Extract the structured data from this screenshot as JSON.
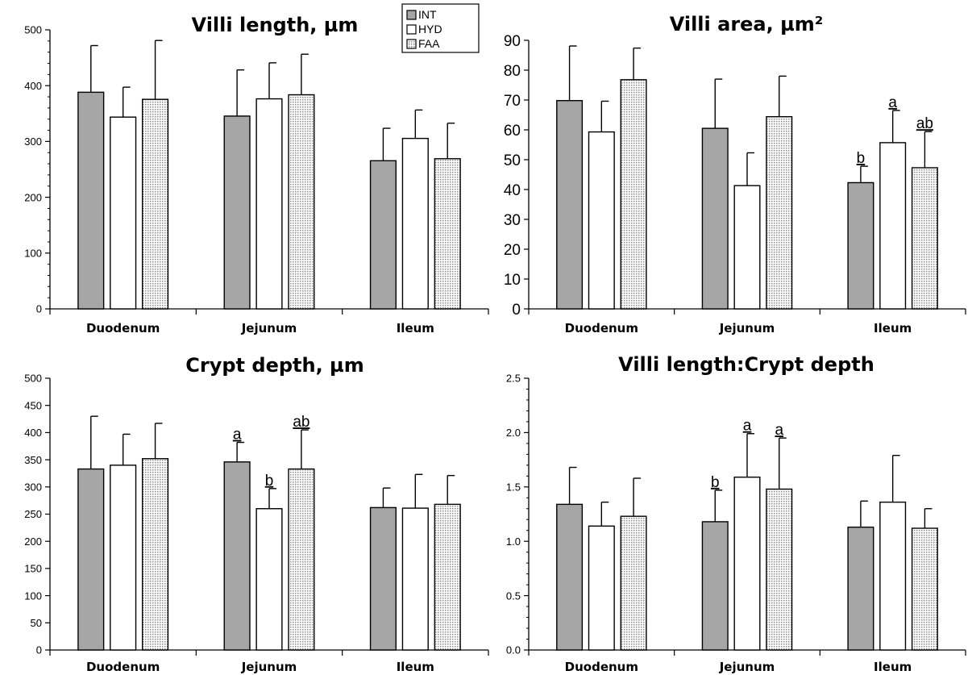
{
  "colors": {
    "INT": "#a6a6a6",
    "HYD": "#ffffff",
    "FAA": "stipple-light-gray",
    "axis": "#000000"
  },
  "legend": {
    "placement": "top-center",
    "entries": [
      "INT",
      "HYD",
      "FAA"
    ]
  },
  "chart_data": [
    {
      "type": "bar",
      "title": "Villi length, µm",
      "categories": [
        "Duodenum",
        "Jejunum",
        "Ileum"
      ],
      "ylim": [
        0,
        550
      ],
      "yticks": [
        "0",
        "100",
        "200",
        "300",
        "400",
        "500"
      ],
      "series": [
        {
          "name": "INT",
          "values": [
            427,
            380,
            292
          ],
          "errors": [
            92,
            91,
            64
          ]
        },
        {
          "name": "HYD",
          "values": [
            378,
            414,
            336
          ],
          "errors": [
            59,
            71,
            56
          ]
        },
        {
          "name": "FAA",
          "values": [
            413,
            422,
            296
          ],
          "errors": [
            116,
            80,
            70
          ]
        }
      ],
      "annotations": [],
      "grid": false
    },
    {
      "type": "bar",
      "title": "Villi area, µm²",
      "categories": [
        "Duodenum",
        "Jejunum",
        "Ileum"
      ],
      "ylim": [
        0,
        90
      ],
      "yticks": [
        "0",
        "10",
        "20",
        "30",
        "40",
        "50",
        "60",
        "70",
        "80",
        "90"
      ],
      "series": [
        {
          "name": "INT",
          "values": [
            69.8,
            60.5,
            42.3
          ],
          "errors": [
            18.3,
            16.5,
            5.5
          ]
        },
        {
          "name": "HYD",
          "values": [
            59.3,
            41.3,
            55.7
          ],
          "errors": [
            10.3,
            11.0,
            10.8
          ]
        },
        {
          "name": "FAA",
          "values": [
            76.8,
            64.4,
            47.3
          ],
          "errors": [
            10.6,
            13.6,
            12.1
          ]
        }
      ],
      "annotations": [
        {
          "category": 2,
          "series": 0,
          "text": "b"
        },
        {
          "category": 2,
          "series": 1,
          "text": "a"
        },
        {
          "category": 2,
          "series": 2,
          "text": "ab"
        }
      ],
      "grid": false
    },
    {
      "type": "bar",
      "title": "Crypt depth, µm",
      "categories": [
        "Duodenum",
        "Jejunum",
        "Ileum"
      ],
      "ylim": [
        0,
        500
      ],
      "yticks": [
        "0",
        "50",
        "100",
        "150",
        "200",
        "250",
        "300",
        "350",
        "400",
        "450",
        "500"
      ],
      "series": [
        {
          "name": "INT",
          "values": [
            333,
            346,
            262
          ],
          "errors": [
            97,
            36,
            36
          ]
        },
        {
          "name": "HYD",
          "values": [
            340,
            260,
            261
          ],
          "errors": [
            57,
            37,
            62
          ]
        },
        {
          "name": "FAA",
          "values": [
            352,
            333,
            268
          ],
          "errors": [
            65,
            72,
            53
          ]
        }
      ],
      "annotations": [
        {
          "category": 1,
          "series": 0,
          "text": "a"
        },
        {
          "category": 1,
          "series": 1,
          "text": "b"
        },
        {
          "category": 1,
          "series": 2,
          "text": "ab"
        }
      ],
      "grid": false
    },
    {
      "type": "bar",
      "title": "Villi length:Crypt depth",
      "categories": [
        "Duodenum",
        "Jejunum",
        "Ileum"
      ],
      "ylim": [
        0,
        2.5
      ],
      "yticks": [
        "0.0",
        "0.5",
        "1.0",
        "1.5",
        "2.0",
        "2.5"
      ],
      "series": [
        {
          "name": "INT",
          "values": [
            1.34,
            1.18,
            1.13
          ],
          "errors": [
            0.34,
            0.29,
            0.24
          ]
        },
        {
          "name": "HYD",
          "values": [
            1.14,
            1.59,
            1.36
          ],
          "errors": [
            0.22,
            0.4,
            0.43
          ]
        },
        {
          "name": "FAA",
          "values": [
            1.23,
            1.48,
            1.12
          ],
          "errors": [
            0.35,
            0.47,
            0.18
          ]
        }
      ],
      "annotations": [
        {
          "category": 1,
          "series": 0,
          "text": "b"
        },
        {
          "category": 1,
          "series": 1,
          "text": "a"
        },
        {
          "category": 1,
          "series": 2,
          "text": "a"
        }
      ],
      "grid": false
    }
  ]
}
